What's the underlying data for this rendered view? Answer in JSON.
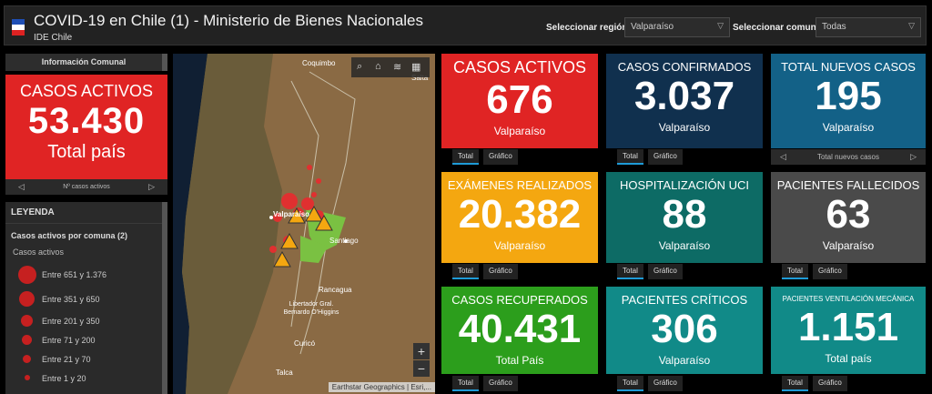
{
  "header": {
    "title": "COVID-19 en Chile (1) - Ministerio de Bienes Nacionales",
    "subtitle": "IDE Chile",
    "region_label": "Seleccionar región:",
    "region_value": "Valparaíso",
    "comuna_label": "Seleccionar comuna",
    "comuna_value": "Todas"
  },
  "left_panel": {
    "header": "Información Comunal",
    "card": {
      "label": "CASOS ACTIVOS",
      "value": "53.430",
      "sub": "Total país",
      "color": "#e02424"
    },
    "nav_label": "Nº casos activos"
  },
  "legend": {
    "title": "LEYENDA",
    "layer": "Casos activos por comuna (2)",
    "group": "Casos activos",
    "items": [
      {
        "label": "Entre 651 y 1.376"
      },
      {
        "label": "Entre 351 y 650"
      },
      {
        "label": "Entre 201 y 350"
      },
      {
        "label": "Entre 71 y 200"
      },
      {
        "label": "Entre 21 y 70"
      },
      {
        "label": "Entre 1 y 20"
      }
    ]
  },
  "map": {
    "labels": {
      "coquimbo": "Coquimbo",
      "salta": "Salta",
      "valparaiso": "Valparaíso",
      "santiago": "Santiago",
      "rancagua": "Rancagua",
      "ohiggins": "Libertador Gral. Bernardo O'Higgins",
      "curico": "Curicó",
      "talca": "Talca"
    },
    "zoom_in": "+",
    "zoom_out": "−",
    "attribution": "Earthstar Geographics | Esri,..."
  },
  "cards": [
    {
      "label": "CASOS ACTIVOS",
      "value": "676",
      "sub": "Valparaíso",
      "color": "#e02424"
    },
    {
      "label": "CASOS CONFIRMADOS",
      "value": "3.037",
      "sub": "Valparaíso",
      "color": "#10304e"
    },
    {
      "label": "TOTAL NUEVOS CASOS",
      "value": "195",
      "sub": "Valparaíso",
      "color": "#136187"
    },
    {
      "label": "EXÁMENES REALIZADOS",
      "value": "20.382",
      "sub": "Valparaíso",
      "color": "#f4a710"
    },
    {
      "label": "HOSPITALIZACIÓN UCI",
      "value": "88",
      "sub": "Valparaíso",
      "color": "#0d6b65"
    },
    {
      "label": "PACIENTES FALLECIDOS",
      "value": "63",
      "sub": "Valparaíso",
      "color": "#4a4a4a"
    },
    {
      "label": "CASOS RECUPERADOS",
      "value": "40.431",
      "sub": "Total País",
      "color": "#2c9e1c"
    },
    {
      "label": "PACIENTES CRÍTICOS",
      "value": "306",
      "sub": "Valparaíso",
      "color": "#118a88"
    },
    {
      "label": "PACIENTES VENTILACIÓN MECÁNICA",
      "value": "1.151",
      "sub": "Total país",
      "color": "#118a88"
    }
  ],
  "tabs": {
    "total": "Total",
    "grafico": "Gráfico"
  },
  "nav_nuevos": "Total nuevos casos",
  "icons": [
    "search-icon",
    "home-icon",
    "layers-icon",
    "qr-icon",
    "chevron-left-icon",
    "chevron-right-icon",
    "chevron-down-icon"
  ]
}
